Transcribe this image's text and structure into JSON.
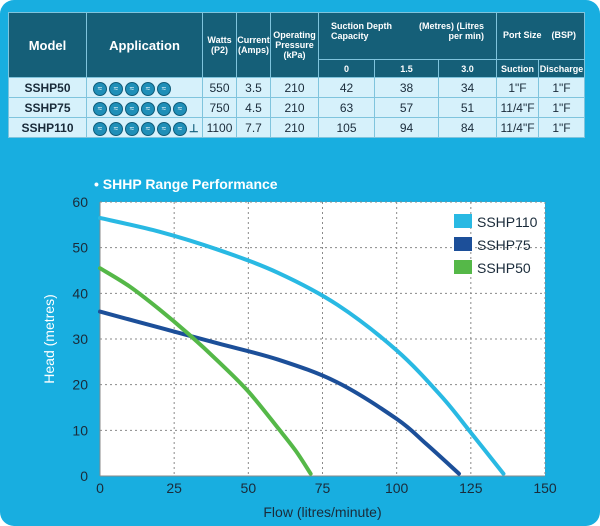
{
  "table": {
    "headers": {
      "model": "Model",
      "application": "Application",
      "watts": "Watts",
      "watts_unit": "(P2)",
      "current": "Current",
      "current_unit": "(Amps)",
      "pressure": "Operating Pressure",
      "pressure_unit": "(kPa)",
      "suction": "Suction Depth Capacity",
      "suction_units": "(Metres) (Litres per min)",
      "port": "Port Size",
      "port_unit": "(BSP)",
      "depths": [
        "0",
        "1.5",
        "3.0"
      ],
      "suction_port": "Suction",
      "discharge_port": "Discharge"
    },
    "rows": [
      {
        "model": "SSHP50",
        "icons": 5,
        "tap": false,
        "watts": "550",
        "current": "3.5",
        "pressure": "210",
        "d0": "42",
        "d15": "38",
        "d30": "34",
        "suction": "1\"F",
        "discharge": "1\"F"
      },
      {
        "model": "SSHP75",
        "icons": 6,
        "tap": false,
        "watts": "750",
        "current": "4.5",
        "pressure": "210",
        "d0": "63",
        "d15": "57",
        "d30": "51",
        "suction": "11/4\"F",
        "discharge": "1\"F"
      },
      {
        "model": "SSHP110",
        "icons": 6,
        "tap": true,
        "watts": "1100",
        "current": "7.7",
        "pressure": "210",
        "d0": "105",
        "d15": "94",
        "d30": "84",
        "suction": "11/4\"F",
        "discharge": "1\"F"
      }
    ]
  },
  "chart_title": "• SHHP Range Performance",
  "chart_data": {
    "type": "line",
    "xlabel": "Flow (litres/minute)",
    "ylabel": "Head (metres)",
    "xlim": [
      0,
      150
    ],
    "ylim": [
      0,
      60
    ],
    "xticks": [
      0,
      25,
      50,
      75,
      100,
      125,
      150
    ],
    "yticks": [
      0,
      10,
      20,
      30,
      40,
      50,
      60
    ],
    "grid": true,
    "legend_position": "top-right",
    "series": [
      {
        "name": "SSHP110",
        "color": "#29b9e3",
        "x": [
          0,
          20,
          40,
          60,
          80,
          100,
          115,
          125,
          136
        ],
        "y": [
          56.5,
          53.5,
          49.5,
          44.5,
          37.5,
          27.5,
          17.5,
          9.5,
          0.5
        ]
      },
      {
        "name": "SSHP75",
        "color": "#1c4f99",
        "x": [
          0,
          20,
          40,
          60,
          80,
          100,
          110,
          121
        ],
        "y": [
          36,
          32.5,
          29,
          25.5,
          20.5,
          12.5,
          7,
          0.5
        ]
      },
      {
        "name": "SSHP50",
        "color": "#55b848",
        "x": [
          0,
          10,
          20,
          30,
          40,
          50,
          60,
          66,
          71
        ],
        "y": [
          45.5,
          41.5,
          36.5,
          31,
          25,
          18.5,
          10.5,
          5.5,
          0.5
        ]
      }
    ]
  }
}
